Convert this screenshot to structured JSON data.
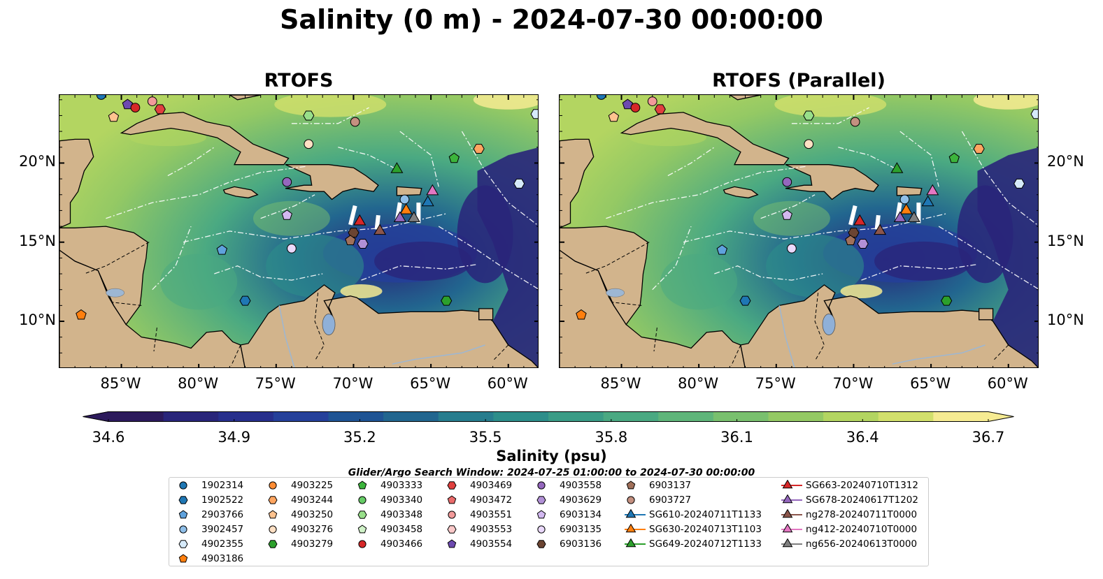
{
  "title": "Salinity (0 m) - 2024-07-30 00:00:00",
  "panels": [
    {
      "title": "RTOFS"
    },
    {
      "title": "RTOFS (Parallel)"
    }
  ],
  "axes": {
    "lon_labels": [
      "85°W",
      "80°W",
      "75°W",
      "70°W",
      "65°W",
      "60°W"
    ],
    "lon_values": [
      -85,
      -80,
      -75,
      -70,
      -65,
      -60
    ],
    "lat_labels": [
      "20°N",
      "15°N",
      "10°N"
    ],
    "lat_values": [
      20,
      15,
      10
    ],
    "lon_range": [
      -89,
      -58
    ],
    "lat_range": [
      7,
      24.3
    ]
  },
  "colorbar": {
    "label": "Salinity (psu)",
    "ticks": [
      "34.6",
      "34.9",
      "35.2",
      "35.5",
      "35.8",
      "36.1",
      "36.4",
      "36.7"
    ],
    "range": [
      34.6,
      36.7
    ],
    "colors": [
      "#2c1a5c",
      "#29257a",
      "#272f8c",
      "#25409a",
      "#1f5494",
      "#22668f",
      "#277d8e",
      "#2d8e8a",
      "#3a9c86",
      "#4aa982",
      "#5fb57a",
      "#79c06e",
      "#94c964",
      "#b3d561",
      "#d2e06c",
      "#f6eb92"
    ]
  },
  "map_colors": {
    "land": "#d2b48c",
    "lake": "#8fb0d8",
    "river": "#9db7d3"
  },
  "search_window": "Glider/Argo Search Window: 2024-07-25 01:00:00 to 2024-07-30 00:00:00",
  "legend": {
    "items": [
      {
        "label": "1902314",
        "shape": "circle",
        "color": "#1f77b4"
      },
      {
        "label": "1902522",
        "shape": "hexagon",
        "color": "#1f77b4"
      },
      {
        "label": "2903766",
        "shape": "pentagon",
        "color": "#5fa2dd"
      },
      {
        "label": "3902457",
        "shape": "circle",
        "color": "#8fbfe9"
      },
      {
        "label": "4902355",
        "shape": "hexagon",
        "color": "#d6eafa"
      },
      {
        "label": "4903186",
        "shape": "pentagon",
        "color": "#ff7f0e"
      },
      {
        "label": "4903225",
        "shape": "circle",
        "color": "#ff8c33"
      },
      {
        "label": "4903244",
        "shape": "hexagon",
        "color": "#ffa560"
      },
      {
        "label": "4903250",
        "shape": "pentagon",
        "color": "#ffc38f"
      },
      {
        "label": "4903276",
        "shape": "circle",
        "color": "#ffe0c4"
      },
      {
        "label": "4903279",
        "shape": "hexagon",
        "color": "#2ca02c"
      },
      {
        "label": "4903333",
        "shape": "pentagon",
        "color": "#3cb43c"
      },
      {
        "label": "4903340",
        "shape": "circle",
        "color": "#66cc66"
      },
      {
        "label": "4903348",
        "shape": "hexagon",
        "color": "#98df8a"
      },
      {
        "label": "4903458",
        "shape": "pentagon",
        "color": "#d0f2c8"
      },
      {
        "label": "4903466",
        "shape": "circle",
        "color": "#d62728"
      },
      {
        "label": "4903469",
        "shape": "hexagon",
        "color": "#e0403f"
      },
      {
        "label": "4903472",
        "shape": "pentagon",
        "color": "#ea6b6b"
      },
      {
        "label": "4903551",
        "shape": "circle",
        "color": "#f29a9a"
      },
      {
        "label": "4903553",
        "shape": "hexagon",
        "color": "#fac9c9"
      },
      {
        "label": "4903554",
        "shape": "pentagon",
        "color": "#6d4ab0"
      },
      {
        "label": "4903558",
        "shape": "circle",
        "color": "#9467bd"
      },
      {
        "label": "4903629",
        "shape": "hexagon",
        "color": "#b190d6"
      },
      {
        "label": "6903134",
        "shape": "pentagon",
        "color": "#d2b8f0"
      },
      {
        "label": "6903135",
        "shape": "circle",
        "color": "#ead9fb"
      },
      {
        "label": "6903136",
        "shape": "hexagon",
        "color": "#6b4432"
      },
      {
        "label": "6903137",
        "shape": "pentagon",
        "color": "#a0705a"
      },
      {
        "label": "6903727",
        "shape": "circle",
        "color": "#c49080"
      },
      {
        "label": "SG610-20240711T1133",
        "shape": "triangle",
        "color": "#1f77b4"
      },
      {
        "label": "SG630-20240713T1103",
        "shape": "triangle",
        "color": "#ff7f0e"
      },
      {
        "label": "SG649-20240712T1133",
        "shape": "triangle",
        "color": "#2ca02c"
      },
      {
        "label": "SG663-20240710T1312",
        "shape": "triangle",
        "color": "#d62728"
      },
      {
        "label": "SG678-20240617T1202",
        "shape": "triangle",
        "color": "#9467bd"
      },
      {
        "label": "ng278-20240711T0000",
        "shape": "triangle",
        "color": "#8c564b"
      },
      {
        "label": "ng412-20240710T0000",
        "shape": "triangle",
        "color": "#e377c2"
      },
      {
        "label": "ng656-20240613T0000",
        "shape": "triangle",
        "color": "#7f7f7f"
      }
    ]
  },
  "observations": [
    {
      "label": "1902314",
      "lon": -86.3,
      "lat": 24.3
    },
    {
      "label": "4903554",
      "lon": -84.6,
      "lat": 23.7
    },
    {
      "label": "4903466",
      "lon": -84.1,
      "lat": 23.5
    },
    {
      "label": "4903551",
      "lon": -83.0,
      "lat": 23.9
    },
    {
      "label": "4903469",
      "lon": -82.5,
      "lat": 23.4
    },
    {
      "label": "4903250",
      "lon": -85.5,
      "lat": 22.9
    },
    {
      "label": "4903348",
      "lon": -72.9,
      "lat": 23.0
    },
    {
      "label": "6903727",
      "lon": -69.9,
      "lat": 22.6
    },
    {
      "label": "4903276",
      "lon": -72.9,
      "lat": 21.2
    },
    {
      "label": "4903244",
      "lon": -61.9,
      "lat": 20.9
    },
    {
      "label": "4903333",
      "lon": -63.5,
      "lat": 20.3
    },
    {
      "label": "4902355",
      "lon": -58.2,
      "lat": 23.1
    },
    {
      "label": "4903558",
      "lon": -74.3,
      "lat": 18.8
    },
    {
      "label": "4902355",
      "lon": -59.3,
      "lat": 18.7
    },
    {
      "label": "3902457",
      "lon": -66.7,
      "lat": 17.7
    },
    {
      "label": "6903134",
      "lon": -74.3,
      "lat": 16.7
    },
    {
      "label": "6903136",
      "lon": -70.0,
      "lat": 15.6
    },
    {
      "label": "6903137",
      "lon": -70.2,
      "lat": 15.1
    },
    {
      "label": "4903629",
      "lon": -69.4,
      "lat": 14.9
    },
    {
      "label": "6903135",
      "lon": -74.0,
      "lat": 14.6
    },
    {
      "label": "2903766",
      "lon": -78.5,
      "lat": 14.5
    },
    {
      "label": "1902522",
      "lon": -77.0,
      "lat": 11.3
    },
    {
      "label": "4903279",
      "lon": -64.0,
      "lat": 11.3
    },
    {
      "label": "4903186",
      "lon": -87.6,
      "lat": 10.4
    },
    {
      "label": "SG649-20240712T1133",
      "lon": -67.2,
      "lat": 19.6
    },
    {
      "label": "ng412-20240710T0000",
      "lon": -64.9,
      "lat": 18.2
    },
    {
      "label": "SG610-20240711T1133",
      "lon": -65.2,
      "lat": 17.5
    },
    {
      "label": "SG630-20240713T1103",
      "lon": -66.6,
      "lat": 17.0
    },
    {
      "label": "SG678-20240617T1202",
      "lon": -67.0,
      "lat": 16.5
    },
    {
      "label": "ng656-20240613T0000",
      "lon": -66.1,
      "lat": 16.5
    },
    {
      "label": "SG663-20240710T1312",
      "lon": -69.6,
      "lat": 16.3
    },
    {
      "label": "ng278-20240711T0000",
      "lon": -68.3,
      "lat": 15.7
    }
  ]
}
